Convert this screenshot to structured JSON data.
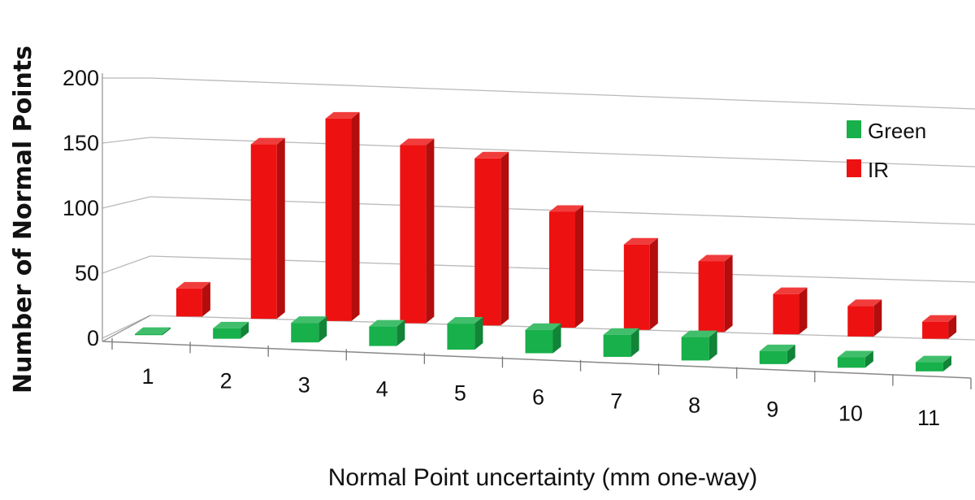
{
  "chart_data": {
    "type": "bar",
    "variant": "3d-clustered-depth",
    "xlabel": "Normal Point uncertainty (mm one-way)",
    "ylabel": "Number of Normal Points",
    "categories": [
      "1",
      "2",
      "3",
      "4",
      "5",
      "6",
      "7",
      "8",
      "9",
      "10",
      "11"
    ],
    "ylim": [
      0,
      200
    ],
    "yticks": [
      "0",
      "50",
      "100",
      "150",
      "200"
    ],
    "grid": true,
    "legend_position": "top-right",
    "series": [
      {
        "name": "Green",
        "color": "#17b04a",
        "values": [
          1,
          8,
          15,
          15,
          20,
          18,
          17,
          18,
          10,
          8,
          7
        ]
      },
      {
        "name": "IR",
        "color": "#ee1111",
        "values": [
          23,
          143,
          166,
          146,
          137,
          95,
          70,
          58,
          33,
          25,
          14
        ]
      }
    ]
  }
}
